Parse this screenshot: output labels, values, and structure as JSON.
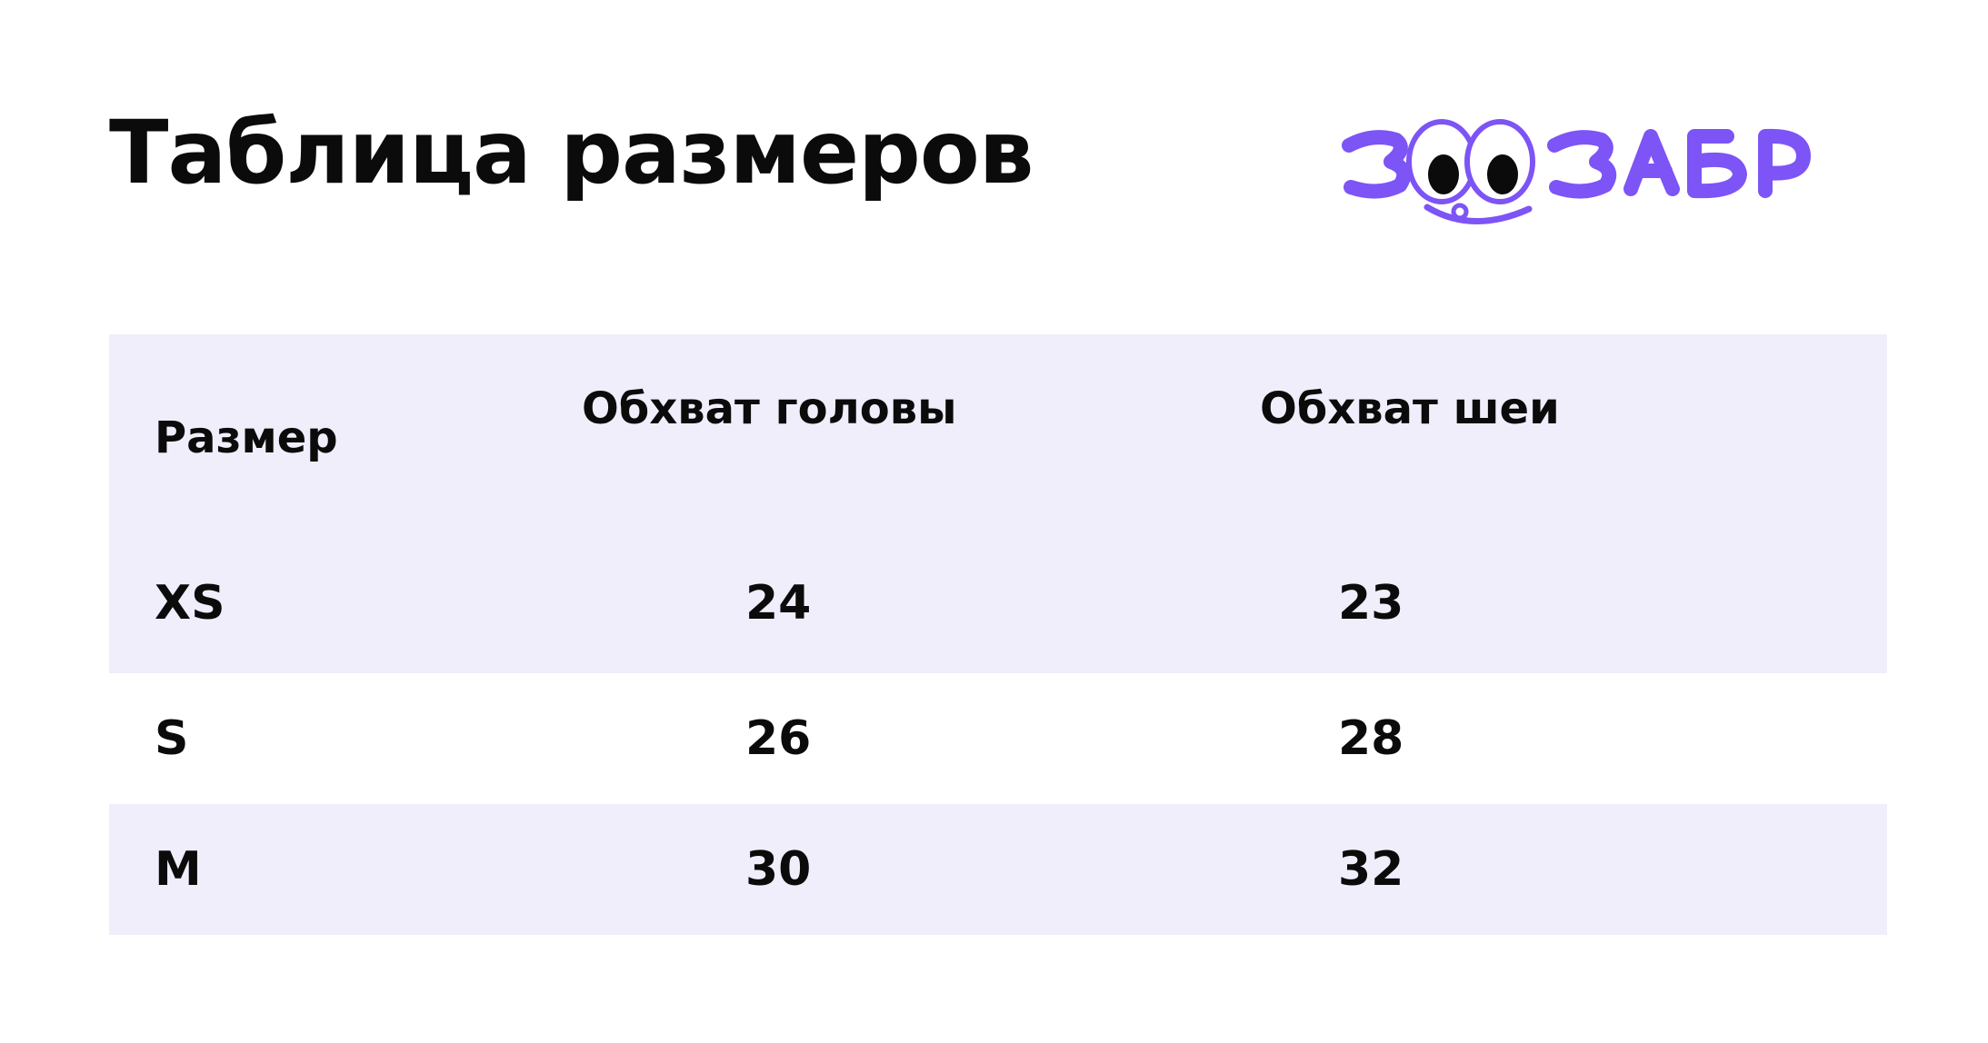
{
  "title": "Таблица размеров",
  "logo": {
    "brand": "ЗООЗАВР",
    "icon": "zoozavr-logo-icon",
    "color": "#7d54f5"
  },
  "table": {
    "headers": {
      "size": "Размер",
      "head": "Обхват головы",
      "neck": "Обхват шеи"
    },
    "rows": [
      {
        "size": "XS",
        "head": "24",
        "neck": "23"
      },
      {
        "size": "S",
        "head": "26",
        "neck": "28"
      },
      {
        "size": "M",
        "head": "30",
        "neck": "32"
      }
    ],
    "shade_color": "#f0eefb"
  }
}
